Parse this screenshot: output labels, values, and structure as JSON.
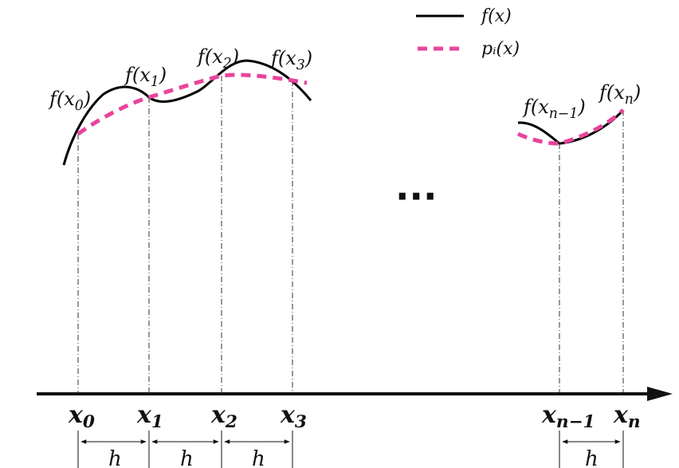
{
  "legend": {
    "f_label": "f(x)",
    "p_label": "pᵢ(x)",
    "f_color": "#000000",
    "p_color": "#e8449b"
  },
  "point_labels": [
    {
      "base": "f(x",
      "sub": "0",
      "tail": ")"
    },
    {
      "base": "f(x",
      "sub": "1",
      "tail": ")"
    },
    {
      "base": "f(x",
      "sub": "2",
      "tail": ")"
    },
    {
      "base": "f(x",
      "sub": "3",
      "tail": ")"
    },
    {
      "base": "f(x",
      "sub": "n−1",
      "tail": ")"
    },
    {
      "base": "f(x",
      "sub": "n",
      "tail": ")"
    }
  ],
  "axis_ticks": [
    {
      "base": "x",
      "sub": "0"
    },
    {
      "base": "x",
      "sub": "1"
    },
    {
      "base": "x",
      "sub": "2"
    },
    {
      "base": "x",
      "sub": "3"
    },
    {
      "base": "x",
      "sub": "n−1"
    },
    {
      "base": "x",
      "sub": "n"
    }
  ],
  "ellipsis": "···",
  "step_label": "h",
  "curve_style": {
    "function_curve": "solid",
    "interpolant_curve": "dashed"
  }
}
